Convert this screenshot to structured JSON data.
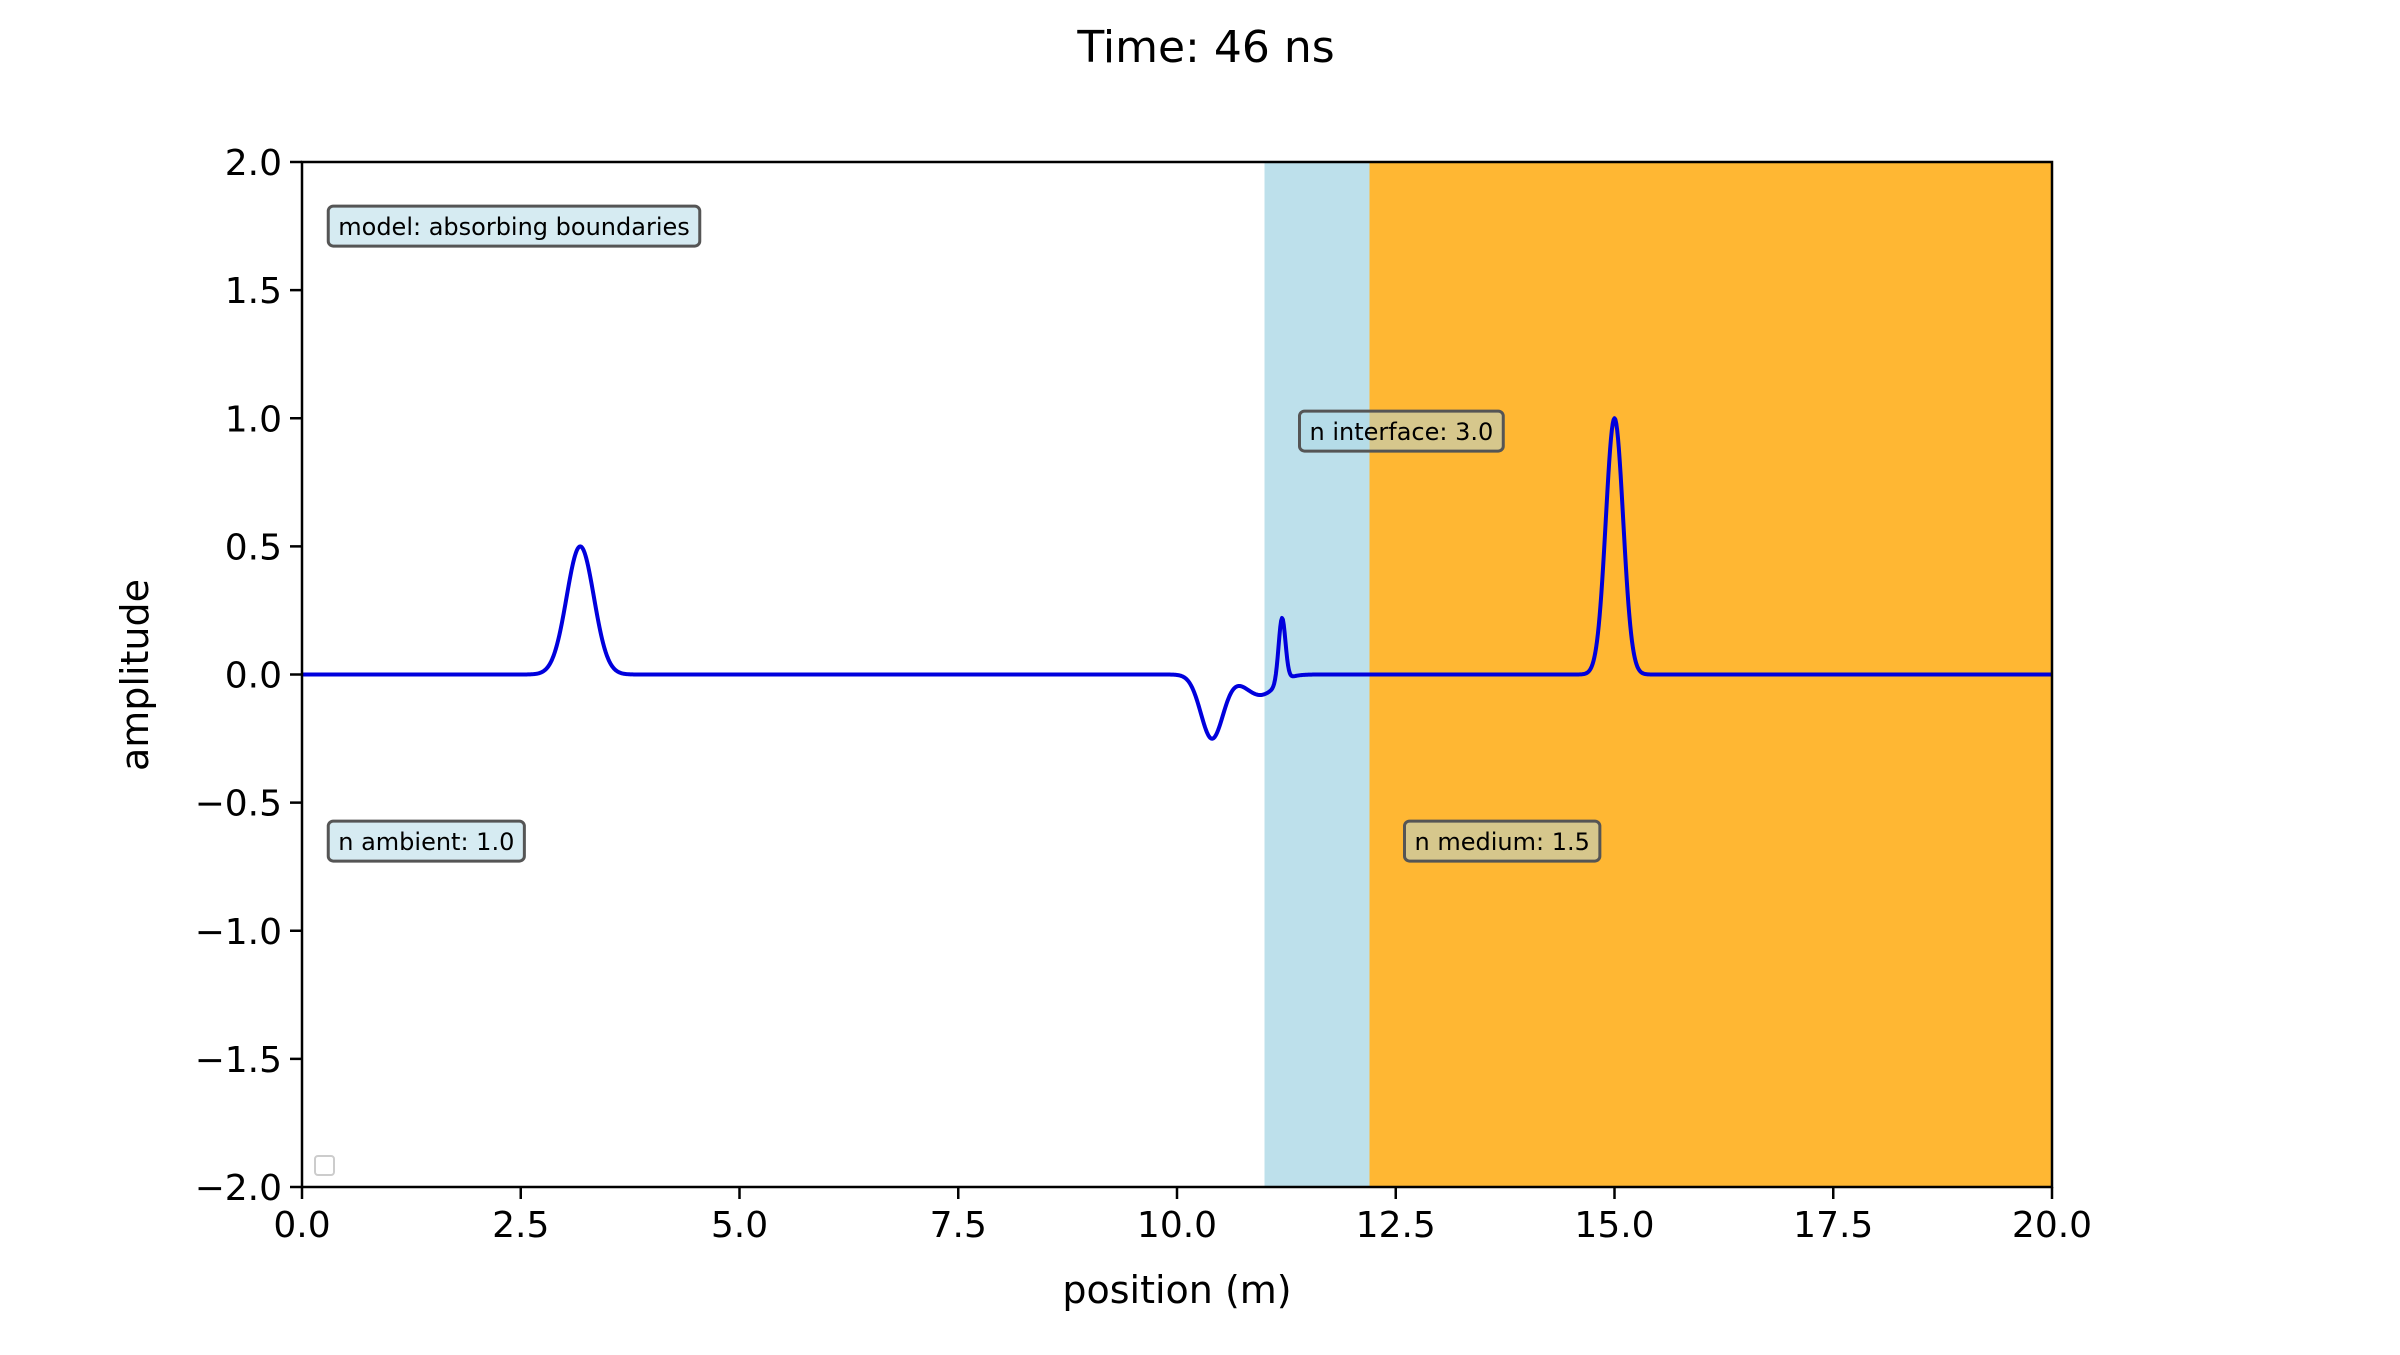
{
  "chart_data": {
    "type": "line",
    "title": "Time: 46 ns",
    "xlabel": "position (m)",
    "ylabel": "amplitude",
    "xlim": [
      0,
      20
    ],
    "ylim": [
      -2,
      2
    ],
    "xticks": [
      0,
      2.5,
      5,
      7.5,
      10,
      12.5,
      15,
      17.5,
      20
    ],
    "xtick_labels": [
      "0.0",
      "2.5",
      "5.0",
      "7.5",
      "10.0",
      "12.5",
      "15.0",
      "17.5",
      "20.0"
    ],
    "yticks": [
      2,
      1.5,
      1,
      0.5,
      0,
      -0.5,
      -1,
      -1.5,
      -2
    ],
    "ytick_labels": [
      "2.0",
      "1.5",
      "1.0",
      "0.5",
      "0.0",
      "−0.5",
      "−1.0",
      "−1.5",
      "−2.0"
    ],
    "grid": false,
    "regions": [
      {
        "x_start": 11.0,
        "x_end": 12.2,
        "color": "#add8e6"
      },
      {
        "x_start": 12.2,
        "x_end": 20.0,
        "color": "#ffa500"
      }
    ],
    "annotations": [
      {
        "text": "model: absorbing boundaries",
        "x": 0.3,
        "y": 1.75,
        "fill": "#add8e6"
      },
      {
        "text": "n interface: 3.0",
        "x": 11.4,
        "y": 0.95,
        "fill": "#add8e6"
      },
      {
        "text": "n ambient: 1.0",
        "x": 0.3,
        "y": -0.65,
        "fill": "#add8e6"
      },
      {
        "text": "n medium: 1.5",
        "x": 12.6,
        "y": -0.65,
        "fill": "#add8e6"
      }
    ],
    "legend": {
      "placement": "lower-left",
      "entries": []
    },
    "series": [
      {
        "color": "#0000dd",
        "pulses": [
          {
            "center": 3.18,
            "amplitude": 0.5,
            "width": 0.22
          },
          {
            "center": 10.4,
            "amplitude": -0.25,
            "width": 0.18
          },
          {
            "center": 10.95,
            "amplitude": -0.08,
            "width": 0.25
          },
          {
            "center": 11.2,
            "amplitude": 0.25,
            "width": 0.055
          },
          {
            "center": 15.0,
            "amplitude": 1.0,
            "width": 0.14
          }
        ]
      }
    ]
  }
}
